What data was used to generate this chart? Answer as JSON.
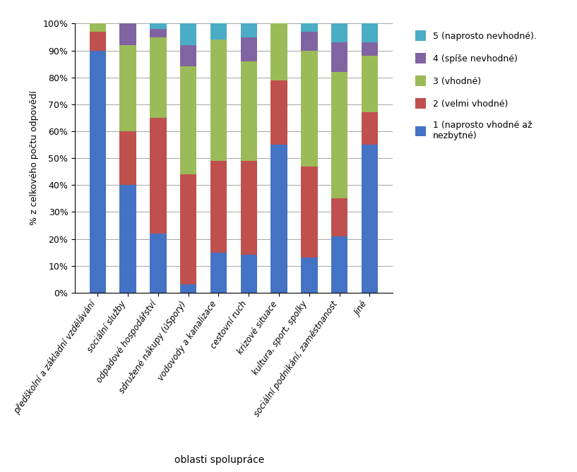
{
  "categories": [
    "předškolní a základní vzdělávání",
    "sociální služby",
    "odpadové hospodářství",
    "sdružené nákupy (úSpory)",
    "vodovody a kanalizace",
    "cestovní ruch",
    "krizové situace",
    "kultura, sport, spolky",
    "sociální podnikání, zaměstnanost",
    "Jiné"
  ],
  "series": {
    "s1": [
      90,
      40,
      22,
      3,
      15,
      14,
      55,
      13,
      21,
      55
    ],
    "s2": [
      7,
      20,
      43,
      41,
      34,
      35,
      24,
      34,
      14,
      12
    ],
    "s3": [
      3,
      32,
      30,
      40,
      45,
      37,
      21,
      43,
      47,
      21
    ],
    "s4": [
      0,
      8,
      3,
      8,
      0,
      9,
      0,
      7,
      11,
      5
    ],
    "s5": [
      0,
      0,
      2,
      8,
      6,
      5,
      0,
      3,
      7,
      7
    ]
  },
  "colors": {
    "s1": "#4472C4",
    "s2": "#C0504D",
    "s3": "#9BBB59",
    "s4": "#8064A2",
    "s5": "#4BACC6"
  },
  "legend_labels": {
    "s1": "1 (naprosto vhodné až\nnezbytné)",
    "s2": "2 (velmi vhodné)",
    "s3": "3 (vhodné)",
    "s4": "4 (spíše nevhodné)",
    "s5": "5 (naprosto nevhodné)."
  },
  "ylabel": "% z celkového počtu odpovědí",
  "xlabel": "oblasti spolupráce",
  "ylim": [
    0,
    100
  ],
  "yticks": [
    0,
    10,
    20,
    30,
    40,
    50,
    60,
    70,
    80,
    90,
    100
  ],
  "ytick_labels": [
    "0%",
    "10%",
    "20%",
    "30%",
    "40%",
    "50%",
    "60%",
    "70%",
    "80%",
    "90%",
    "100%"
  ]
}
